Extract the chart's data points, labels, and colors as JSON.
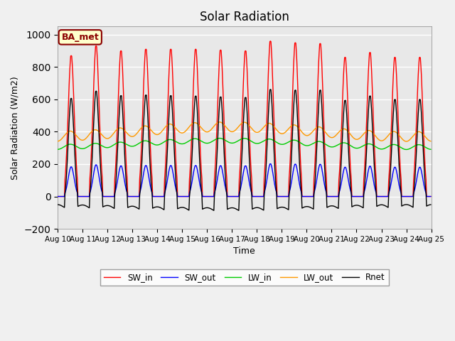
{
  "title": "Solar Radiation",
  "ylabel": "Solar Radiation (W/m2)",
  "xlabel": "Time",
  "background_color": "#e8e8e8",
  "grid_color": "#ffffff",
  "x_tick_labels": [
    "Aug 10",
    "Aug 11",
    "Aug 12",
    "Aug 13",
    "Aug 14",
    "Aug 15",
    "Aug 16",
    "Aug 17",
    "Aug 18",
    "Aug 19",
    "Aug 20",
    "Aug 21",
    "Aug 22",
    "Aug 23",
    "Aug 24",
    "Aug 25"
  ],
  "legend_label": "BA_met",
  "lines": {
    "SW_in": {
      "color": "#ff0000",
      "label": "SW_in"
    },
    "SW_out": {
      "color": "#0000ff",
      "label": "SW_out"
    },
    "LW_in": {
      "color": "#00cc00",
      "label": "LW_in"
    },
    "LW_out": {
      "color": "#ff9900",
      "label": "LW_out"
    },
    "Rnet": {
      "color": "#000000",
      "label": "Rnet"
    }
  },
  "n_days": 15,
  "hours_per_day": 24,
  "dt": 0.5,
  "sw_in_peaks": [
    870,
    930,
    900,
    910,
    910,
    910,
    905,
    900,
    960,
    950,
    945,
    860,
    890,
    860,
    860
  ],
  "yticks": [
    -200,
    0,
    200,
    400,
    600,
    800,
    1000
  ],
  "ylim": [
    -200,
    1050
  ]
}
